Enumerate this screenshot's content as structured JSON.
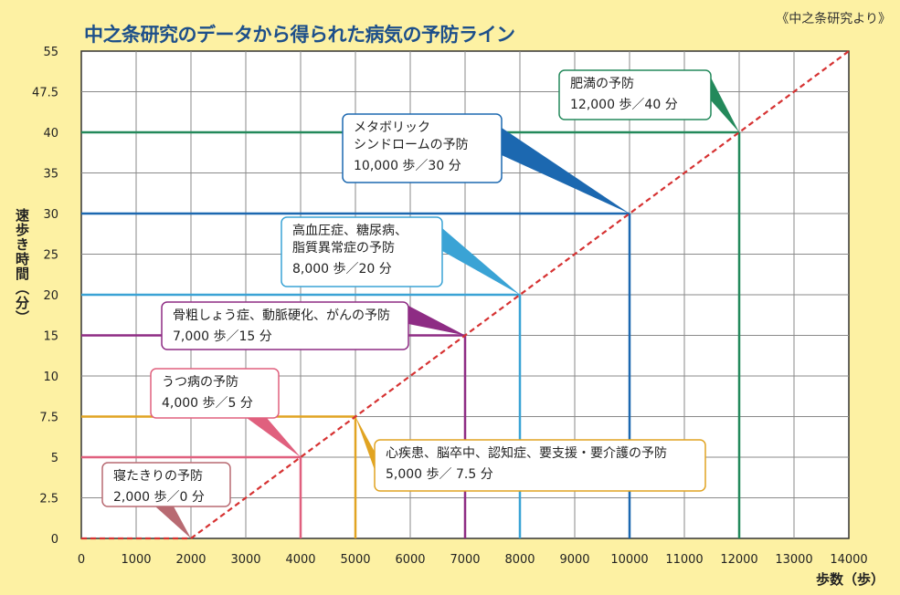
{
  "title": "中之条研究のデータから得られた病気の予防ライン",
  "source": "《中之条研究より》",
  "chart_data": {
    "type": "line",
    "title": "中之条研究のデータから得られた病気の予防ライン",
    "xlabel": "歩数（歩）",
    "ylabel": "速歩き時間（分）",
    "xlim": [
      0,
      14000
    ],
    "ylim": [
      0,
      55
    ],
    "x_ticks": [
      "0",
      "1000",
      "2000",
      "3000",
      "4000",
      "5000",
      "6000",
      "7000",
      "8000",
      "9000",
      "10000",
      "11000",
      "12000",
      "13000",
      "14000"
    ],
    "y_ticks": [
      "0",
      "2.5",
      "5",
      "7.5",
      "10",
      "15",
      "20",
      "25",
      "30",
      "35",
      "40",
      "47.5",
      "55"
    ],
    "grid": true,
    "trend_line": [
      [
        0,
        0
      ],
      [
        2000,
        0
      ],
      [
        14000,
        55
      ]
    ],
    "points": [
      {
        "label": "寝たきりの予防",
        "detail": "2,000 歩／0 分",
        "steps": 2000,
        "minutes": 0,
        "color": "#b86a72"
      },
      {
        "label": "うつ病の予防",
        "detail": "4,000 歩／5 分",
        "steps": 4000,
        "minutes": 5,
        "color": "#e0607e"
      },
      {
        "label": "心疾患、脳卒中、認知症、要支援・要介護の予防",
        "detail": "5,000 歩／ 7.5 分",
        "steps": 5000,
        "minutes": 7.5,
        "color": "#e1a422"
      },
      {
        "label": "骨粗しょう症、動脈硬化、がんの予防",
        "detail": "7,000 歩／15 分",
        "steps": 7000,
        "minutes": 15,
        "color": "#8e2c84"
      },
      {
        "label": "高血圧症、糖尿病、\n脂質異常症の予防",
        "detail": "8,000 歩／20 分",
        "steps": 8000,
        "minutes": 20,
        "color": "#3aa3d5"
      },
      {
        "label": "メタボリック\nシンドロームの予防",
        "detail": "10,000 歩／30 分",
        "steps": 10000,
        "minutes": 30,
        "color": "#1c68b0"
      },
      {
        "label": "肥満の予防",
        "detail": "12,000 歩／40 分",
        "steps": 12000,
        "minutes": 40,
        "color": "#23895b"
      }
    ]
  }
}
